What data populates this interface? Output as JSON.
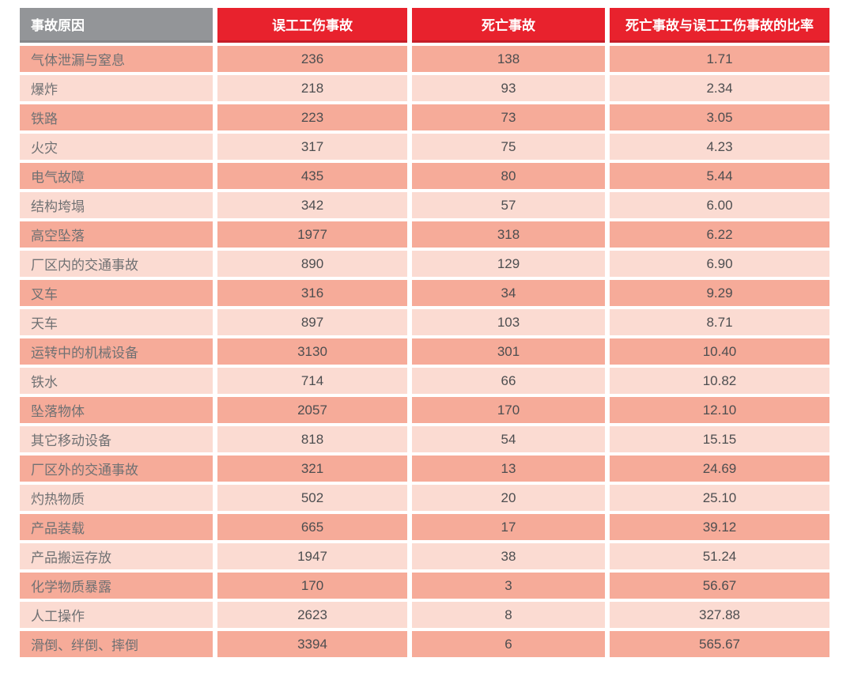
{
  "table": {
    "columns": [
      "事故原因",
      "误工工伤事故",
      "死亡事故",
      "死亡事故与误工工伤事故的比率"
    ],
    "rows": [
      {
        "cause": "气体泄漏与窒息",
        "lost_time": "236",
        "fatal": "138",
        "ratio": "1.71"
      },
      {
        "cause": "爆炸",
        "lost_time": "218",
        "fatal": "93",
        "ratio": "2.34"
      },
      {
        "cause": "铁路",
        "lost_time": "223",
        "fatal": "73",
        "ratio": "3.05"
      },
      {
        "cause": "火灾",
        "lost_time": "317",
        "fatal": "75",
        "ratio": "4.23"
      },
      {
        "cause": "电气故障",
        "lost_time": "435",
        "fatal": "80",
        "ratio": "5.44"
      },
      {
        "cause": "结构垮塌",
        "lost_time": "342",
        "fatal": "57",
        "ratio": "6.00"
      },
      {
        "cause": "高空坠落",
        "lost_time": "1977",
        "fatal": "318",
        "ratio": "6.22"
      },
      {
        "cause": "厂区内的交通事故",
        "lost_time": "890",
        "fatal": "129",
        "ratio": "6.90"
      },
      {
        "cause": "叉车",
        "lost_time": "316",
        "fatal": "34",
        "ratio": "9.29"
      },
      {
        "cause": "天车",
        "lost_time": "897",
        "fatal": "103",
        "ratio": "8.71"
      },
      {
        "cause": "运转中的机械设备",
        "lost_time": "3130",
        "fatal": "301",
        "ratio": "10.40"
      },
      {
        "cause": "铁水",
        "lost_time": "714",
        "fatal": "66",
        "ratio": "10.82"
      },
      {
        "cause": "坠落物体",
        "lost_time": "2057",
        "fatal": "170",
        "ratio": "12.10"
      },
      {
        "cause": "其它移动设备",
        "lost_time": "818",
        "fatal": "54",
        "ratio": "15.15"
      },
      {
        "cause": "厂区外的交通事故",
        "lost_time": "321",
        "fatal": "13",
        "ratio": "24.69"
      },
      {
        "cause": "灼热物质",
        "lost_time": "502",
        "fatal": "20",
        "ratio": "25.10"
      },
      {
        "cause": "产品装载",
        "lost_time": "665",
        "fatal": "17",
        "ratio": "39.12"
      },
      {
        "cause": "产品搬运存放",
        "lost_time": "1947",
        "fatal": "38",
        "ratio": "51.24"
      },
      {
        "cause": "化学物质暴露",
        "lost_time": "170",
        "fatal": "3",
        "ratio": "56.67"
      },
      {
        "cause": "人工操作",
        "lost_time": "2623",
        "fatal": "8",
        "ratio": "327.88"
      },
      {
        "cause": "滑倒、绊倒、摔倒",
        "lost_time": "3394",
        "fatal": "6",
        "ratio": "565.67"
      }
    ]
  },
  "chart_data": {
    "type": "table",
    "title": "",
    "columns": [
      "事故原因",
      "误工工伤事故",
      "死亡事故",
      "死亡事故与误工工伤事故的比率"
    ],
    "rows": [
      [
        "气体泄漏与窒息",
        236,
        138,
        1.71
      ],
      [
        "爆炸",
        218,
        93,
        2.34
      ],
      [
        "铁路",
        223,
        73,
        3.05
      ],
      [
        "火灾",
        317,
        75,
        4.23
      ],
      [
        "电气故障",
        435,
        80,
        5.44
      ],
      [
        "结构垮塌",
        342,
        57,
        6.0
      ],
      [
        "高空坠落",
        1977,
        318,
        6.22
      ],
      [
        "厂区内的交通事故",
        890,
        129,
        6.9
      ],
      [
        "叉车",
        316,
        34,
        9.29
      ],
      [
        "天车",
        897,
        103,
        8.71
      ],
      [
        "运转中的机械设备",
        3130,
        301,
        10.4
      ],
      [
        "铁水",
        714,
        66,
        10.82
      ],
      [
        "坠落物体",
        2057,
        170,
        12.1
      ],
      [
        "其它移动设备",
        818,
        54,
        15.15
      ],
      [
        "厂区外的交通事故",
        321,
        13,
        24.69
      ],
      [
        "灼热物质",
        502,
        20,
        25.1
      ],
      [
        "产品装载",
        665,
        17,
        39.12
      ],
      [
        "产品搬运存放",
        1947,
        38,
        51.24
      ],
      [
        "化学物质暴露",
        170,
        3,
        56.67
      ],
      [
        "人工操作",
        2623,
        8,
        327.88
      ],
      [
        "滑倒、绊倒、摔倒",
        3394,
        6,
        565.67
      ]
    ]
  },
  "colors": {
    "header_gray": "#939598",
    "header_red": "#E8222D",
    "header_red_border": "#C51E28",
    "row_dark": "#F6AB99",
    "row_light": "#FBDBD2",
    "label_text": "#707173",
    "number_text": "#4D4E50"
  }
}
